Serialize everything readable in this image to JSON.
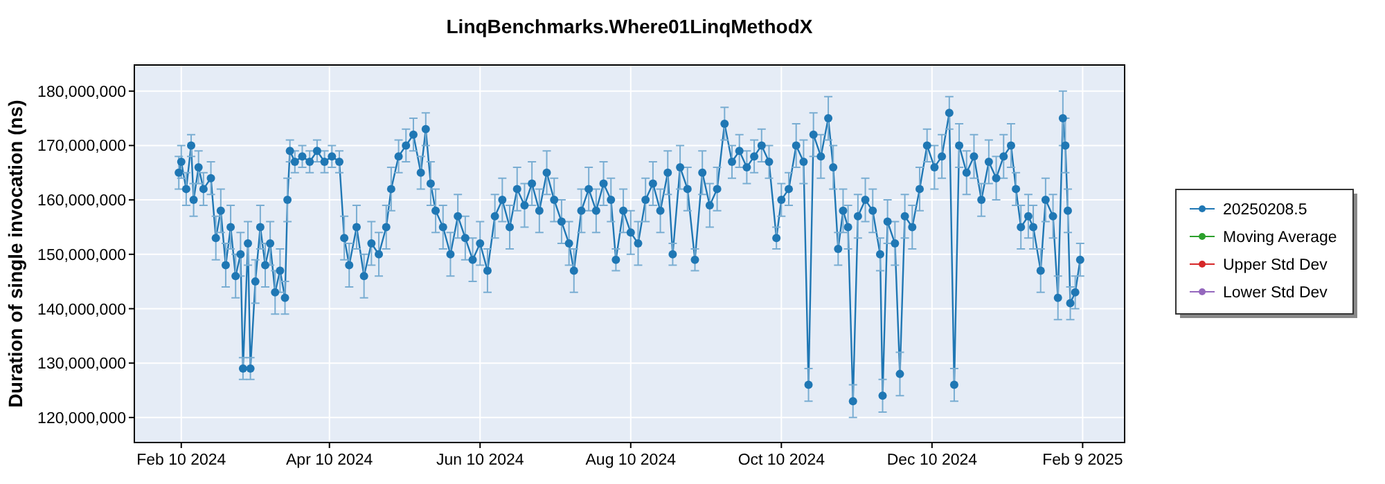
{
  "chart_data": {
    "type": "line",
    "title": "LinqBenchmarks.Where01LinqMethodX",
    "ylabel": "Duration of single invocation (ns)",
    "xlim": [
      "2024-01-22",
      "2025-02-26"
    ],
    "xticks": [
      {
        "value": "2024-02-10",
        "label": "Feb 10 2024"
      },
      {
        "value": "2024-04-10",
        "label": "Apr 10 2024"
      },
      {
        "value": "2024-06-10",
        "label": "Jun 10 2024"
      },
      {
        "value": "2024-08-10",
        "label": "Aug 10 2024"
      },
      {
        "value": "2024-10-10",
        "label": "Oct 10 2024"
      },
      {
        "value": "2024-12-10",
        "label": "Dec 10 2024"
      },
      {
        "value": "2025-02-09",
        "label": "Feb 9 2025"
      }
    ],
    "ylim": [
      115400000,
      184800000
    ],
    "yticks": [
      {
        "value": 120000000,
        "label": "120,000,000"
      },
      {
        "value": 130000000,
        "label": "130,000,000"
      },
      {
        "value": 140000000,
        "label": "140,000,000"
      },
      {
        "value": 150000000,
        "label": "150,000,000"
      },
      {
        "value": 160000000,
        "label": "160,000,000"
      },
      {
        "value": 170000000,
        "label": "170,000,000"
      },
      {
        "value": 180000000,
        "label": "180,000,000"
      }
    ],
    "grid": true,
    "legend": "right",
    "marker": "circle",
    "x": [
      "2024-02-09",
      "2024-02-10",
      "2024-02-12",
      "2024-02-14",
      "2024-02-15",
      "2024-02-17",
      "2024-02-19",
      "2024-02-22",
      "2024-02-24",
      "2024-02-26",
      "2024-02-28",
      "2024-03-01",
      "2024-03-03",
      "2024-03-05",
      "2024-03-06",
      "2024-03-08",
      "2024-03-09",
      "2024-03-11",
      "2024-03-13",
      "2024-03-15",
      "2024-03-17",
      "2024-03-19",
      "2024-03-21",
      "2024-03-23",
      "2024-03-24",
      "2024-03-25",
      "2024-03-27",
      "2024-03-30",
      "2024-04-02",
      "2024-04-05",
      "2024-04-08",
      "2024-04-11",
      "2024-04-14",
      "2024-04-16",
      "2024-04-18",
      "2024-04-21",
      "2024-04-24",
      "2024-04-27",
      "2024-04-30",
      "2024-05-03",
      "2024-05-05",
      "2024-05-08",
      "2024-05-11",
      "2024-05-14",
      "2024-05-17",
      "2024-05-19",
      "2024-05-21",
      "2024-05-23",
      "2024-05-26",
      "2024-05-29",
      "2024-06-01",
      "2024-06-04",
      "2024-06-07",
      "2024-06-10",
      "2024-06-13",
      "2024-06-16",
      "2024-06-19",
      "2024-06-22",
      "2024-06-25",
      "2024-06-28",
      "2024-07-01",
      "2024-07-04",
      "2024-07-07",
      "2024-07-10",
      "2024-07-13",
      "2024-07-16",
      "2024-07-18",
      "2024-07-21",
      "2024-07-24",
      "2024-07-27",
      "2024-07-30",
      "2024-08-02",
      "2024-08-04",
      "2024-08-07",
      "2024-08-10",
      "2024-08-13",
      "2024-08-16",
      "2024-08-19",
      "2024-08-22",
      "2024-08-25",
      "2024-08-27",
      "2024-08-30",
      "2024-09-02",
      "2024-09-05",
      "2024-09-08",
      "2024-09-11",
      "2024-09-14",
      "2024-09-17",
      "2024-09-20",
      "2024-09-23",
      "2024-09-26",
      "2024-09-29",
      "2024-10-02",
      "2024-10-05",
      "2024-10-08",
      "2024-10-10",
      "2024-10-13",
      "2024-10-16",
      "2024-10-19",
      "2024-10-21",
      "2024-10-23",
      "2024-10-26",
      "2024-10-29",
      "2024-10-31",
      "2024-11-02",
      "2024-11-04",
      "2024-11-06",
      "2024-11-08",
      "2024-11-10",
      "2024-11-13",
      "2024-11-16",
      "2024-11-19",
      "2024-11-20",
      "2024-11-22",
      "2024-11-25",
      "2024-11-27",
      "2024-11-29",
      "2024-12-02",
      "2024-12-05",
      "2024-12-08",
      "2024-12-11",
      "2024-12-14",
      "2024-12-17",
      "2024-12-19",
      "2024-12-21",
      "2024-12-24",
      "2024-12-27",
      "2024-12-30",
      "2025-01-02",
      "2025-01-05",
      "2025-01-08",
      "2025-01-11",
      "2025-01-13",
      "2025-01-15",
      "2025-01-18",
      "2025-01-20",
      "2025-01-23",
      "2025-01-25",
      "2025-01-28",
      "2025-01-30",
      "2025-02-01",
      "2025-02-02",
      "2025-02-03",
      "2025-02-04",
      "2025-02-06",
      "2025-02-08"
    ],
    "series": [
      {
        "name": "20250208.5",
        "color": "#1f77b4",
        "values": [
          165000000,
          167000000,
          162000000,
          170000000,
          160000000,
          166000000,
          162000000,
          164000000,
          153000000,
          158000000,
          148000000,
          155000000,
          146000000,
          150000000,
          129000000,
          152000000,
          129000000,
          145000000,
          155000000,
          148000000,
          152000000,
          143000000,
          147000000,
          142000000,
          160000000,
          169000000,
          167000000,
          168000000,
          167000000,
          169000000,
          167000000,
          168000000,
          167000000,
          153000000,
          148000000,
          155000000,
          146000000,
          152000000,
          150000000,
          155000000,
          162000000,
          168000000,
          170000000,
          172000000,
          165000000,
          173000000,
          163000000,
          158000000,
          155000000,
          150000000,
          157000000,
          153000000,
          149000000,
          152000000,
          147000000,
          157000000,
          160000000,
          155000000,
          162000000,
          159000000,
          163000000,
          158000000,
          165000000,
          160000000,
          156000000,
          152000000,
          147000000,
          158000000,
          162000000,
          158000000,
          163000000,
          160000000,
          149000000,
          158000000,
          154000000,
          152000000,
          160000000,
          163000000,
          158000000,
          165000000,
          150000000,
          166000000,
          162000000,
          149000000,
          165000000,
          159000000,
          162000000,
          174000000,
          167000000,
          169000000,
          166000000,
          168000000,
          170000000,
          167000000,
          153000000,
          160000000,
          162000000,
          170000000,
          167000000,
          126000000,
          172000000,
          168000000,
          175000000,
          166000000,
          151000000,
          158000000,
          155000000,
          123000000,
          157000000,
          160000000,
          158000000,
          150000000,
          124000000,
          156000000,
          152000000,
          128000000,
          157000000,
          155000000,
          162000000,
          170000000,
          166000000,
          168000000,
          176000000,
          126000000,
          170000000,
          165000000,
          168000000,
          160000000,
          167000000,
          164000000,
          168000000,
          170000000,
          162000000,
          155000000,
          157000000,
          155000000,
          147000000,
          160000000,
          157000000,
          142000000,
          175000000,
          170000000,
          158000000,
          141000000,
          143000000,
          149000000
        ],
        "errors": [
          3000000,
          3000000,
          3000000,
          2000000,
          3000000,
          3000000,
          3000000,
          3000000,
          4000000,
          4000000,
          4000000,
          4000000,
          4000000,
          4000000,
          2000000,
          4000000,
          2000000,
          4000000,
          4000000,
          4000000,
          4000000,
          4000000,
          4000000,
          3000000,
          4000000,
          2000000,
          2000000,
          2000000,
          2000000,
          2000000,
          2000000,
          2000000,
          2000000,
          4000000,
          4000000,
          4000000,
          4000000,
          4000000,
          4000000,
          4000000,
          4000000,
          3000000,
          3000000,
          3000000,
          3000000,
          3000000,
          4000000,
          4000000,
          4000000,
          4000000,
          4000000,
          4000000,
          4000000,
          4000000,
          4000000,
          4000000,
          4000000,
          4000000,
          4000000,
          4000000,
          4000000,
          4000000,
          4000000,
          4000000,
          4000000,
          4000000,
          4000000,
          4000000,
          4000000,
          4000000,
          4000000,
          4000000,
          2000000,
          4000000,
          4000000,
          4000000,
          4000000,
          4000000,
          4000000,
          4000000,
          2000000,
          4000000,
          4000000,
          2000000,
          4000000,
          4000000,
          4000000,
          3000000,
          3000000,
          3000000,
          3000000,
          3000000,
          3000000,
          3000000,
          2000000,
          3000000,
          3000000,
          4000000,
          4000000,
          3000000,
          4000000,
          4000000,
          4000000,
          4000000,
          3000000,
          4000000,
          4000000,
          3000000,
          4000000,
          4000000,
          4000000,
          3000000,
          3000000,
          4000000,
          4000000,
          4000000,
          4000000,
          4000000,
          4000000,
          3000000,
          4000000,
          4000000,
          3000000,
          3000000,
          4000000,
          4000000,
          4000000,
          3000000,
          4000000,
          4000000,
          4000000,
          4000000,
          3000000,
          4000000,
          4000000,
          4000000,
          4000000,
          4000000,
          4000000,
          4000000,
          5000000,
          5000000,
          4000000,
          3000000,
          3000000,
          3000000
        ]
      },
      {
        "name": "Moving Average",
        "color": "#2ca02c",
        "values": [
          null,
          null,
          null,
          null,
          null,
          null,
          null,
          null,
          null,
          null,
          null,
          null,
          null,
          null,
          null,
          null,
          null,
          null,
          null,
          null,
          null,
          null,
          null,
          null,
          null,
          null,
          null,
          null,
          null,
          null,
          null,
          null,
          null,
          null,
          null,
          null,
          null,
          null,
          null,
          null,
          null,
          null,
          null,
          null,
          null,
          null,
          null,
          null,
          null,
          null,
          null,
          null,
          null,
          null,
          null,
          null,
          null,
          null,
          null,
          null,
          null,
          null,
          null,
          null,
          null,
          null,
          null,
          null,
          null,
          null,
          null,
          null,
          null,
          null,
          null,
          null,
          null,
          null,
          null,
          null,
          null,
          null,
          null,
          null,
          null,
          null,
          null,
          null,
          null,
          null,
          null,
          null,
          null,
          null,
          null,
          null,
          null,
          null,
          null,
          null,
          null,
          null,
          null,
          null,
          null,
          null,
          null,
          null,
          null,
          null,
          null,
          null,
          null,
          null,
          null,
          null,
          null,
          null,
          null,
          null,
          null,
          null,
          null,
          null,
          null,
          null,
          null,
          null,
          null,
          null,
          null,
          null,
          null,
          null,
          null,
          null,
          null,
          null,
          null,
          null,
          null,
          null,
          null,
          null,
          null,
          null
        ]
      },
      {
        "name": "Upper Std Dev",
        "color": "#d62728",
        "values": [
          null,
          null,
          null,
          null,
          null,
          null,
          null,
          null,
          null,
          null,
          null,
          null,
          null,
          null,
          null,
          null,
          null,
          null,
          null,
          null,
          null,
          null,
          null,
          null,
          null,
          null,
          null,
          null,
          null,
          null,
          null,
          null,
          null,
          null,
          null,
          null,
          null,
          null,
          null,
          null,
          null,
          null,
          null,
          null,
          null,
          null,
          null,
          null,
          null,
          null,
          null,
          null,
          null,
          null,
          null,
          null,
          null,
          null,
          null,
          null,
          null,
          null,
          null,
          null,
          null,
          null,
          null,
          null,
          null,
          null,
          null,
          null,
          null,
          null,
          null,
          null,
          null,
          null,
          null,
          null,
          null,
          null,
          null,
          null,
          null,
          null,
          null,
          null,
          null,
          null,
          null,
          null,
          null,
          null,
          null,
          null,
          null,
          null,
          null,
          null,
          null,
          null,
          null,
          null,
          null,
          null,
          null,
          null,
          null,
          null,
          null,
          null,
          null,
          null,
          null,
          null,
          null,
          null,
          null,
          null,
          null,
          null,
          null,
          null,
          null,
          null,
          null,
          null,
          null,
          null,
          null,
          null,
          null,
          null,
          null,
          null,
          null,
          null,
          null,
          null,
          null,
          null,
          null,
          null,
          null,
          null
        ]
      },
      {
        "name": "Lower Std Dev",
        "color": "#9467bd",
        "values": [
          null,
          null,
          null,
          null,
          null,
          null,
          null,
          null,
          null,
          null,
          null,
          null,
          null,
          null,
          null,
          null,
          null,
          null,
          null,
          null,
          null,
          null,
          null,
          null,
          null,
          null,
          null,
          null,
          null,
          null,
          null,
          null,
          null,
          null,
          null,
          null,
          null,
          null,
          null,
          null,
          null,
          null,
          null,
          null,
          null,
          null,
          null,
          null,
          null,
          null,
          null,
          null,
          null,
          null,
          null,
          null,
          null,
          null,
          null,
          null,
          null,
          null,
          null,
          null,
          null,
          null,
          null,
          null,
          null,
          null,
          null,
          null,
          null,
          null,
          null,
          null,
          null,
          null,
          null,
          null,
          null,
          null,
          null,
          null,
          null,
          null,
          null,
          null,
          null,
          null,
          null,
          null,
          null,
          null,
          null,
          null,
          null,
          null,
          null,
          null,
          null,
          null,
          null,
          null,
          null,
          null,
          null,
          null,
          null,
          null,
          null,
          null,
          null,
          null,
          null,
          null,
          null,
          null,
          null,
          null,
          null,
          null,
          null,
          null,
          null,
          null,
          null,
          null,
          null,
          null,
          null,
          null,
          null,
          null,
          null,
          null,
          null,
          null,
          null,
          null,
          null,
          null,
          null,
          null,
          null,
          null
        ]
      }
    ]
  }
}
